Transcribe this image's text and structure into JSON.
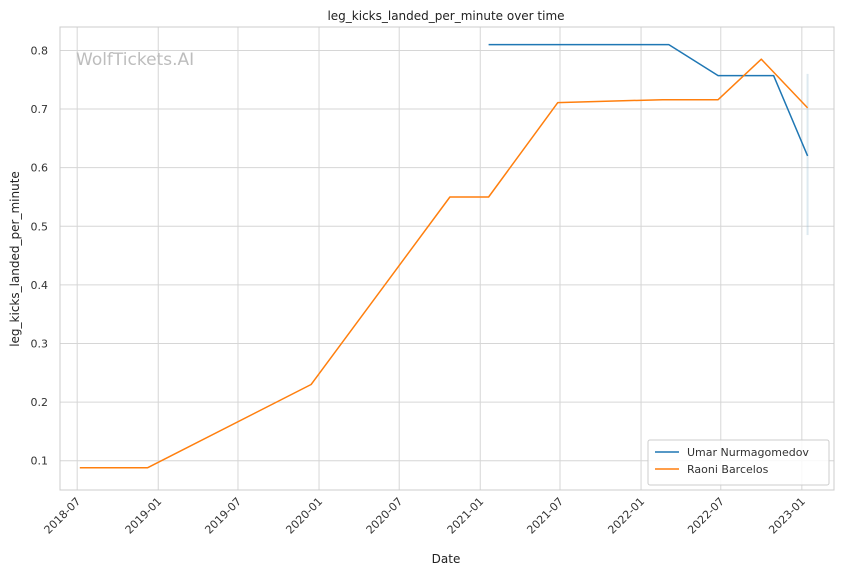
{
  "chart_data": {
    "type": "line",
    "title": "leg_kicks_landed_per_minute over time",
    "xlabel": "Date",
    "ylabel": "leg_kicks_landed_per_minute",
    "watermark": "WolfTickets.AI",
    "x_ticks": [
      "2018-07",
      "2019-01",
      "2019-07",
      "2020-01",
      "2020-07",
      "2021-01",
      "2021-07",
      "2022-01",
      "2022-07",
      "2023-01"
    ],
    "y_ticks": [
      "0.1",
      "0.2",
      "0.3",
      "0.4",
      "0.5",
      "0.6",
      "0.7",
      "0.8"
    ],
    "xlim": [
      "2018-05-23",
      "2023-03-15"
    ],
    "ylim": [
      0.05,
      0.84
    ],
    "grid": true,
    "legend_position": "bottom-right",
    "series": [
      {
        "name": "Umar Nurmagomedov",
        "color": "#1f77b4",
        "points": [
          {
            "x": "2021-01-20",
            "y": 0.81
          },
          {
            "x": "2022-03-05",
            "y": 0.81
          },
          {
            "x": "2022-06-25",
            "y": 0.757
          },
          {
            "x": "2022-10-29",
            "y": 0.757
          },
          {
            "x": "2023-01-14",
            "y": 0.62
          }
        ]
      },
      {
        "name": "Raoni Barcelos",
        "color": "#ff7f0e",
        "points": [
          {
            "x": "2018-07-07",
            "y": 0.088
          },
          {
            "x": "2018-12-08",
            "y": 0.088
          },
          {
            "x": "2019-12-14",
            "y": 0.23
          },
          {
            "x": "2020-10-24",
            "y": 0.55
          },
          {
            "x": "2021-01-20",
            "y": 0.55
          },
          {
            "x": "2021-06-26",
            "y": 0.711
          },
          {
            "x": "2022-02-19",
            "y": 0.716
          },
          {
            "x": "2022-06-25",
            "y": 0.716
          },
          {
            "x": "2022-10-01",
            "y": 0.785
          },
          {
            "x": "2023-01-14",
            "y": 0.702
          }
        ]
      }
    ],
    "error_band": {
      "x": "2023-01-14",
      "y_low": 0.485,
      "y_high": 0.76,
      "color": "#9fbfd4"
    }
  }
}
